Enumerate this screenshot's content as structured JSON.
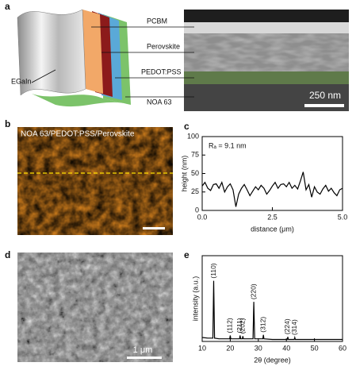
{
  "figure": {
    "a": {
      "label": "a",
      "layers": [
        "PCBM",
        "Perovskite",
        "PEDOT:PSS",
        "NOA 63"
      ],
      "electrode": "EGaIn",
      "scale_bar": "250 nm"
    },
    "b": {
      "label": "b",
      "caption": "NOA 63/PEDOT:PSS/Perovskite"
    },
    "c": {
      "label": "c"
    },
    "d": {
      "label": "d",
      "scale_bar": "1 μm"
    },
    "e": {
      "label": "e"
    }
  },
  "chart_data": [
    {
      "type": "line",
      "color": "#000000",
      "x": [
        0,
        0.1,
        0.2,
        0.3,
        0.4,
        0.5,
        0.6,
        0.7,
        0.8,
        0.9,
        1.0,
        1.1,
        1.2,
        1.3,
        1.4,
        1.5,
        1.6,
        1.7,
        1.8,
        1.9,
        2.0,
        2.1,
        2.2,
        2.3,
        2.4,
        2.5,
        2.6,
        2.7,
        2.8,
        2.9,
        3.0,
        3.1,
        3.2,
        3.3,
        3.4,
        3.5,
        3.6,
        3.7,
        3.8,
        3.9,
        4.0,
        4.1,
        4.2,
        4.3,
        4.4,
        4.5,
        4.6,
        4.7,
        4.8,
        4.9,
        5.0
      ],
      "values": [
        33,
        38,
        30,
        27,
        35,
        36,
        30,
        38,
        25,
        32,
        36,
        28,
        5,
        22,
        30,
        35,
        28,
        20,
        26,
        32,
        28,
        34,
        30,
        22,
        27,
        33,
        38,
        30,
        35,
        36,
        32,
        38,
        30,
        34,
        29,
        40,
        52,
        28,
        35,
        18,
        32,
        25,
        22,
        29,
        34,
        26,
        30,
        24,
        20,
        28,
        30
      ],
      "xlim": [
        0,
        5
      ],
      "xticks": [
        {
          "value": 0,
          "label": "0.0"
        },
        {
          "value": 2.5,
          "label": "2.5"
        },
        {
          "value": 5,
          "label": "5.0"
        }
      ],
      "ylim": [
        0,
        100
      ],
      "yticks": [
        0,
        25,
        50,
        75,
        100
      ],
      "x_label": "distance (μm)",
      "y_label": "height (nm)",
      "annotation": "Rₐ = 9.1 nm"
    },
    {
      "type": "line",
      "color": "#000000",
      "x": [
        10,
        12,
        13.8,
        14.1,
        14.4,
        16,
        19.8,
        20,
        20.2,
        22,
        23.3,
        23.5,
        23.7,
        24.3,
        24.5,
        24.7,
        26,
        28.1,
        28.4,
        28.7,
        30,
        31.6,
        31.8,
        32,
        35,
        40.3,
        40.5,
        40.7,
        42.8,
        43,
        43.2,
        50,
        55,
        60
      ],
      "values": [
        6,
        5,
        5,
        92,
        5,
        4,
        4,
        9,
        4,
        4,
        4,
        9,
        4,
        4,
        8,
        4,
        4,
        4,
        60,
        4,
        4,
        4,
        10,
        4,
        3,
        3,
        7,
        3,
        3,
        6,
        3,
        3,
        3,
        3
      ],
      "xlim": [
        10,
        60
      ],
      "xticks": [
        10,
        20,
        30,
        40,
        50,
        60
      ],
      "ylim": [
        0,
        130
      ],
      "x_label": "2θ (degree)",
      "y_label": "intensity (a.u.)",
      "peak_labels": [
        {
          "text": "(110)",
          "x": 14.1
        },
        {
          "text": "(112)",
          "x": 20
        },
        {
          "text": "(211)",
          "x": 23.5
        },
        {
          "text": "(202)",
          "x": 24.5
        },
        {
          "text": "(220)",
          "x": 28.4
        },
        {
          "text": "(312)",
          "x": 31.8
        },
        {
          "text": "(224)",
          "x": 40.5
        },
        {
          "text": "(314)",
          "x": 43
        }
      ]
    }
  ]
}
